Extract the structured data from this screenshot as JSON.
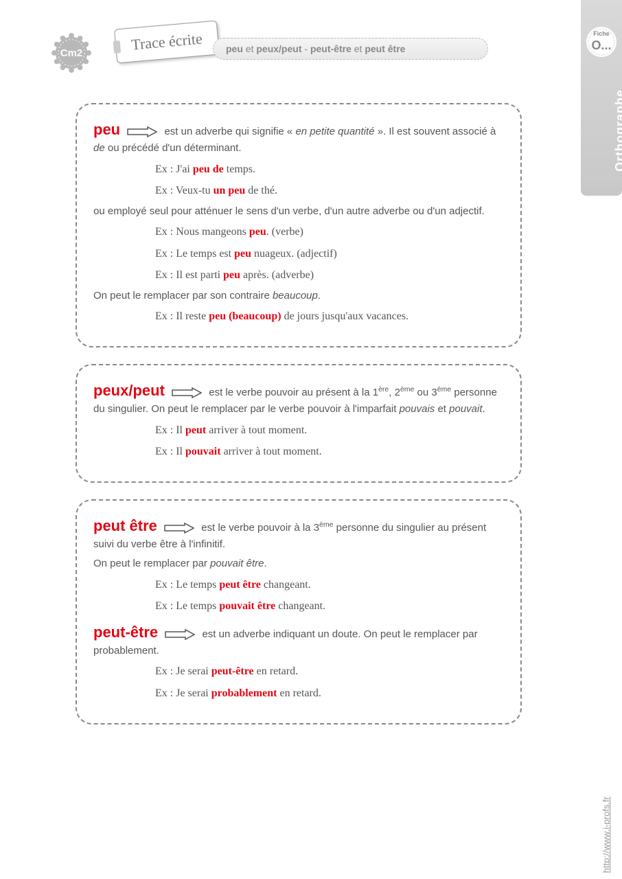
{
  "badge": {
    "label": "Cm2",
    "fill": "#b8b8b8"
  },
  "trace_tag": "Trace écrite",
  "title_html": "<b>peu</b> et <b>peux/peut</b> - <b>peut-être</b> et <b>peut être</b>",
  "side": {
    "fiche_label": "Fiche",
    "fiche_num": "O...",
    "subject": "Orthographe"
  },
  "url": "http://www.i-profs.fr",
  "colors": {
    "accent": "#e30613",
    "text": "#555",
    "box_border": "#888",
    "side_bg1": "#d9d9d9",
    "side_bg2": "#c8c8c8"
  },
  "box1": {
    "kw": "peu",
    "p1_a": " est un adverbe qui signifie « ",
    "p1_i": "en petite quantité",
    "p1_b": " ». Il est souvent associé à ",
    "p1_de": "de",
    "p1_c": " ou précédé d'un déterminant.",
    "ex1": {
      "pre": "Ex : J'ai ",
      "r": "peu de",
      "post": " temps."
    },
    "ex2": {
      "pre": "Ex : Veux-tu ",
      "r": "un peu",
      "post": " de thé."
    },
    "p2": "ou employé seul pour atténuer le sens d'un verbe, d'un autre adverbe ou d'un adjectif.",
    "ex3": {
      "pre": "Ex : Nous mangeons ",
      "r": "peu",
      "post": ". (verbe)"
    },
    "ex4": {
      "pre": "Ex : Le temps est ",
      "r": "peu",
      "post": " nuageux. (adjectif)"
    },
    "ex5": {
      "pre": "Ex : Il est parti ",
      "r": "peu",
      "post": " après. (adverbe)"
    },
    "p3_a": "On peut le remplacer par son contraire ",
    "p3_i": "beaucoup",
    "p3_b": ".",
    "ex6": {
      "pre": "Ex : Il reste ",
      "r": "peu (beaucoup)",
      "post": " de jours jusqu'aux vacances."
    }
  },
  "box2": {
    "kw": "peux/peut",
    "p1_a": " est le verbe pouvoir au présent à la 1",
    "p1_s1": "ère",
    "p1_b": ", 2",
    "p1_s2": "ème",
    "p1_c": " ou 3",
    "p1_s3": "ème",
    "p1_d": " personne du singulier. On peut le remplacer par le verbe pouvoir à l'imparfait ",
    "p1_i1": "pouvais",
    "p1_e": " et ",
    "p1_i2": "pouvait",
    "p1_f": ".",
    "ex1": {
      "pre": "Ex : Il ",
      "r": "peut",
      "post": " arriver à tout moment."
    },
    "ex2": {
      "pre": "Ex : Il ",
      "r": "pouvait",
      "post": " arriver à tout moment."
    }
  },
  "box3": {
    "kw1": "peut être",
    "p1_a": " est le verbe pouvoir à la 3",
    "p1_s": "ème",
    "p1_b": " personne du singulier au présent suivi du verbe être à l'infinitif.",
    "p2_a": "On peut le remplacer par ",
    "p2_i": "pouvait être",
    "p2_b": ".",
    "ex1": {
      "pre": "Ex : Le temps ",
      "r": "peut être",
      "post": " changeant."
    },
    "ex2": {
      "pre": "Ex : Le temps ",
      "r": "pouvait être",
      "post": " changeant."
    },
    "kw2": "peut-être",
    "p3": " est un adverbe indiquant un doute. On peut le remplacer par probablement.",
    "ex3": {
      "pre": "Ex : Je serai ",
      "r": "peut-être",
      "post": " en retard."
    },
    "ex4": {
      "pre": "Ex : Je serai ",
      "r": "probablement",
      "post": " en retard."
    }
  }
}
